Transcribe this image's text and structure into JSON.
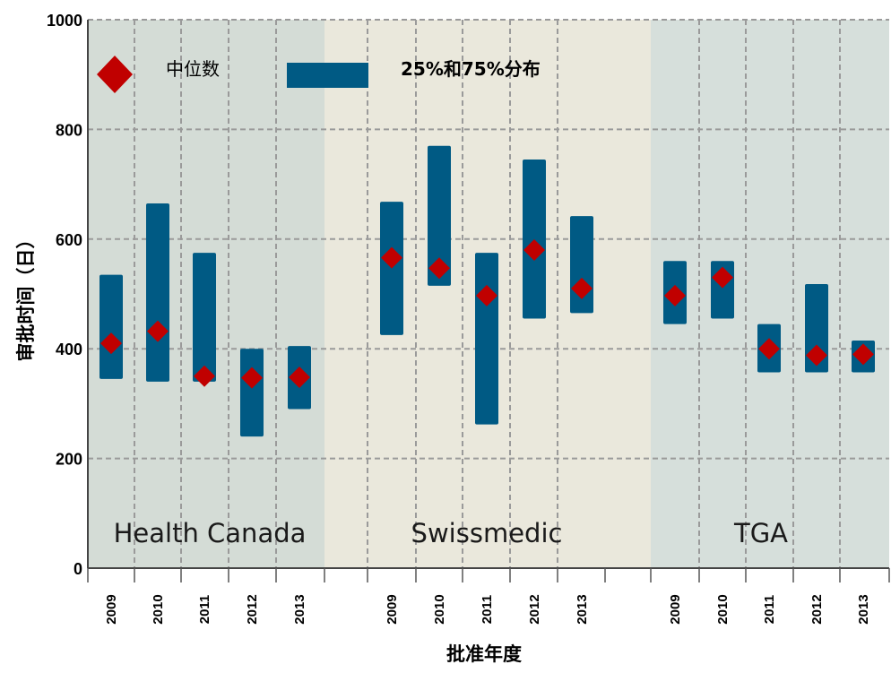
{
  "chart_data": {
    "type": "range_bar_with_median",
    "title": "",
    "xlabel": "批准年度",
    "ylabel": "审批时间（日）",
    "ylim": [
      0,
      1000
    ],
    "yticks": [
      0,
      200,
      400,
      600,
      800,
      1000
    ],
    "grid": true,
    "legend": {
      "placement": "top-left",
      "items": [
        {
          "label": "中位数",
          "marker": "diamond",
          "color": "#c00000"
        },
        {
          "label": "25%和75%分布",
          "marker": "bar",
          "color": "#005a84"
        }
      ]
    },
    "colors": {
      "bar": "#005a84",
      "median": "#c00000",
      "panel_1": "#d4dcd6",
      "panel_2": "#eae8dc",
      "panel_3": "#d6dfdb",
      "grid": "#9a9a9a"
    },
    "groups": [
      {
        "name": "Health Canada",
        "years": [
          "2009",
          "2010",
          "2011",
          "2012",
          "2013"
        ],
        "q25": [
          345,
          340,
          340,
          240,
          290
        ],
        "q75": [
          535,
          665,
          575,
          400,
          405
        ],
        "median": [
          410,
          432,
          350,
          347,
          348
        ]
      },
      {
        "name": "Swissmedic",
        "years": [
          "2009",
          "2010",
          "2011",
          "2012",
          "2013"
        ],
        "q25": [
          425,
          515,
          262,
          455,
          465
        ],
        "q75": [
          668,
          770,
          575,
          745,
          642
        ],
        "median": [
          566,
          547,
          497,
          580,
          510
        ]
      },
      {
        "name": "TGA",
        "years": [
          "2009",
          "2010",
          "2011",
          "2012",
          "2013"
        ],
        "q25": [
          445,
          455,
          357,
          357,
          357
        ],
        "q75": [
          560,
          560,
          445,
          518,
          415
        ],
        "median": [
          497,
          530,
          400,
          388,
          390
        ]
      }
    ]
  }
}
